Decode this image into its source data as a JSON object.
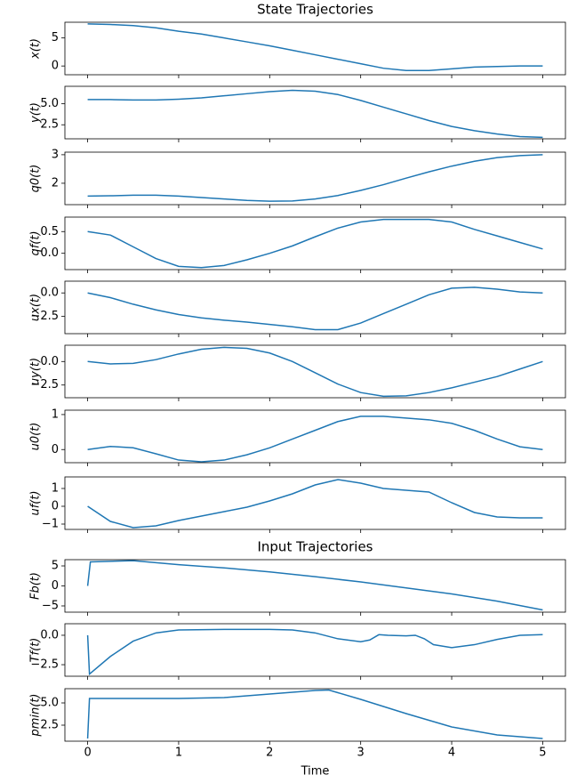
{
  "chart_data": [
    {
      "type": "line",
      "title": "State Trajectories",
      "ylabel": "x(t)",
      "color": "#1f77b4",
      "x": [
        0,
        0.25,
        0.5,
        0.75,
        1,
        1.25,
        1.5,
        1.75,
        2,
        2.25,
        2.5,
        2.75,
        3,
        3.25,
        3.5,
        3.75,
        4,
        4.25,
        4.5,
        4.75,
        5
      ],
      "values": [
        7.5,
        7.4,
        7.2,
        6.8,
        6.2,
        5.7,
        5.0,
        4.3,
        3.6,
        2.8,
        2.0,
        1.2,
        0.4,
        -0.4,
        -0.8,
        -0.8,
        -0.5,
        -0.2,
        -0.1,
        0,
        0
      ],
      "xlim": [
        -0.25,
        5.25
      ],
      "xticks": [
        0,
        1,
        2,
        3,
        4,
        5
      ],
      "ylim": [
        -1.56,
        7.8
      ],
      "yticks": [
        0,
        5
      ]
    },
    {
      "type": "line",
      "ylabel": "y(t)",
      "color": "#1f77b4",
      "x": [
        0,
        0.25,
        0.5,
        0.75,
        1,
        1.25,
        1.5,
        1.75,
        2,
        2.25,
        2.5,
        2.75,
        3,
        3.25,
        3.5,
        3.75,
        4,
        4.25,
        4.5,
        4.75,
        5
      ],
      "values": [
        5.5,
        5.5,
        5.45,
        5.45,
        5.55,
        5.7,
        5.95,
        6.2,
        6.45,
        6.6,
        6.5,
        6.1,
        5.4,
        4.6,
        3.8,
        3.0,
        2.3,
        1.8,
        1.4,
        1.1,
        1.0
      ],
      "xlim": [
        -0.25,
        5.25
      ],
      "xticks": [
        0,
        1,
        2,
        3,
        4,
        5
      ],
      "ylim": [
        0.83,
        7.08
      ],
      "yticks": [
        {
          "value": 5,
          "label": "5.0"
        },
        {
          "value": 2.5,
          "label": "2.5"
        }
      ]
    },
    {
      "type": "line",
      "ylabel": "q0(t)",
      "color": "#1f77b4",
      "x": [
        0,
        0.25,
        0.5,
        0.75,
        1,
        1.25,
        1.5,
        1.75,
        2,
        2.25,
        2.5,
        2.75,
        3,
        3.25,
        3.5,
        3.75,
        4,
        4.25,
        4.5,
        4.75,
        5
      ],
      "values": [
        1.55,
        1.56,
        1.58,
        1.58,
        1.55,
        1.5,
        1.45,
        1.4,
        1.37,
        1.38,
        1.45,
        1.57,
        1.75,
        1.95,
        2.18,
        2.4,
        2.6,
        2.77,
        2.9,
        2.97,
        3.0
      ],
      "xlim": [
        -0.25,
        5.25
      ],
      "xticks": [
        0,
        1,
        2,
        3,
        4,
        5
      ],
      "ylim": [
        1.25,
        3.09
      ],
      "yticks": [
        2,
        3
      ]
    },
    {
      "type": "line",
      "ylabel": "qf(t)",
      "color": "#1f77b4",
      "x": [
        0,
        0.25,
        0.5,
        0.75,
        1,
        1.25,
        1.5,
        1.75,
        2,
        2.25,
        2.5,
        2.75,
        3,
        3.25,
        3.5,
        3.75,
        4,
        4.25,
        4.5,
        4.75,
        5
      ],
      "values": [
        0.5,
        0.42,
        0.15,
        -0.12,
        -0.3,
        -0.33,
        -0.28,
        -0.15,
        0,
        0.17,
        0.38,
        0.58,
        0.72,
        0.78,
        0.78,
        0.78,
        0.72,
        0.55,
        0.4,
        0.25,
        0.1
      ],
      "xlim": [
        -0.25,
        5.25
      ],
      "xticks": [
        0,
        1,
        2,
        3,
        4,
        5
      ],
      "ylim": [
        -0.375,
        0.833
      ],
      "yticks": [
        0.5,
        {
          "value": 0,
          "label": "0.0"
        }
      ]
    },
    {
      "type": "line",
      "ylabel": "ux(t)",
      "color": "#1f77b4",
      "x": [
        0,
        0.25,
        0.5,
        0.75,
        1,
        1.25,
        1.5,
        1.75,
        2,
        2.25,
        2.5,
        2.75,
        3,
        3.25,
        3.5,
        3.75,
        4,
        4.25,
        4.5,
        4.75,
        5
      ],
      "values": [
        0,
        -0.5,
        -1.2,
        -1.8,
        -2.3,
        -2.65,
        -2.9,
        -3.1,
        -3.35,
        -3.6,
        -3.9,
        -3.9,
        -3.2,
        -2.2,
        -1.2,
        -0.2,
        0.5,
        0.6,
        0.4,
        0.1,
        0
      ],
      "xlim": [
        -0.25,
        5.25
      ],
      "xticks": [
        0,
        1,
        2,
        3,
        4,
        5
      ],
      "ylim": [
        -4.33,
        1.25
      ],
      "yticks": [
        {
          "value": 0,
          "label": "0.0"
        },
        {
          "value": -2.5,
          "label": "−2.5"
        }
      ]
    },
    {
      "type": "line",
      "ylabel": "uy(t)",
      "color": "#1f77b4",
      "x": [
        0,
        0.25,
        0.5,
        0.75,
        1,
        1.25,
        1.5,
        1.75,
        2,
        2.25,
        2.5,
        2.75,
        3,
        3.25,
        3.5,
        3.75,
        4,
        4.25,
        4.5,
        4.75,
        5
      ],
      "values": [
        0,
        -0.25,
        -0.2,
        0.2,
        0.8,
        1.3,
        1.5,
        1.4,
        0.9,
        0,
        -1.2,
        -2.4,
        -3.3,
        -3.7,
        -3.65,
        -3.3,
        -2.8,
        -2.2,
        -1.6,
        -0.8,
        0
      ],
      "xlim": [
        -0.25,
        5.25
      ],
      "xticks": [
        0,
        1,
        2,
        3,
        4,
        5
      ],
      "ylim": [
        -3.85,
        1.73
      ],
      "yticks": [
        {
          "value": 0,
          "label": "0.0"
        },
        {
          "value": -2.5,
          "label": "−2.5"
        }
      ]
    },
    {
      "type": "line",
      "ylabel": "u0(t)",
      "color": "#1f77b4",
      "x": [
        0,
        0.25,
        0.5,
        0.75,
        1,
        1.25,
        1.5,
        1.75,
        2,
        2.25,
        2.5,
        2.75,
        3,
        3.25,
        3.5,
        3.75,
        4,
        4.25,
        4.5,
        4.75,
        5
      ],
      "values": [
        0,
        0.09,
        0.05,
        -0.12,
        -0.3,
        -0.35,
        -0.3,
        -0.15,
        0.05,
        0.3,
        0.55,
        0.8,
        0.95,
        0.95,
        0.9,
        0.85,
        0.75,
        0.55,
        0.3,
        0.08,
        0
      ],
      "xlim": [
        -0.25,
        5.25
      ],
      "xticks": [
        0,
        1,
        2,
        3,
        4,
        5
      ],
      "ylim": [
        -0.375,
        1.125
      ],
      "yticks": [
        1,
        0
      ]
    },
    {
      "type": "line",
      "ylabel": "uf(t)",
      "color": "#1f77b4",
      "x": [
        0,
        0.25,
        0.5,
        0.75,
        1,
        1.25,
        1.5,
        1.75,
        2,
        2.25,
        2.5,
        2.75,
        3,
        3.25,
        3.5,
        3.75,
        4,
        4.25,
        4.5,
        4.75,
        5
      ],
      "values": [
        0,
        -0.85,
        -1.2,
        -1.1,
        -0.8,
        -0.55,
        -0.3,
        -0.05,
        0.3,
        0.7,
        1.2,
        1.5,
        1.3,
        1.0,
        0.9,
        0.8,
        0.2,
        -0.35,
        -0.6,
        -0.65,
        -0.65
      ],
      "xlim": [
        -0.25,
        5.25
      ],
      "xticks": [
        0,
        1,
        2,
        3,
        4,
        5
      ],
      "ylim": [
        -1.3,
        1.65
      ],
      "yticks": [
        1,
        0,
        {
          "value": -1,
          "label": "−1"
        }
      ]
    },
    {
      "type": "line",
      "title": "Input Trajectories",
      "ylabel": "Fb(t)",
      "color": "#1f77b4",
      "x": [
        0,
        0.03,
        0.5,
        1,
        1.5,
        2,
        2.5,
        3,
        3.5,
        4,
        4.5,
        5
      ],
      "values": [
        0,
        6,
        6.3,
        5.3,
        4.5,
        3.5,
        2.3,
        1,
        -0.5,
        -2,
        -3.8,
        -6
      ],
      "xlim": [
        -0.25,
        5.25
      ],
      "xticks": [
        0,
        1,
        2,
        3,
        4,
        5
      ],
      "ylim": [
        -6.56,
        6.56
      ],
      "yticks": [
        5,
        0,
        {
          "value": -5,
          "label": "−5"
        }
      ]
    },
    {
      "type": "line",
      "ylabel": "Tf(t)",
      "color": "#1f77b4",
      "x": [
        0,
        0.02,
        0.25,
        0.5,
        0.75,
        1,
        1.5,
        2,
        2.25,
        2.5,
        2.75,
        3,
        3.1,
        3.2,
        3.3,
        3.5,
        3.6,
        3.7,
        3.8,
        4,
        4.25,
        4.5,
        4.75,
        5
      ],
      "values": [
        0,
        -3.3,
        -1.8,
        -0.5,
        0.2,
        0.45,
        0.5,
        0.5,
        0.45,
        0.2,
        -0.3,
        -0.55,
        -0.4,
        0.05,
        0,
        -0.05,
        0,
        -0.3,
        -0.8,
        -1.05,
        -0.8,
        -0.35,
        0,
        0.05
      ],
      "xlim": [
        -0.25,
        5.25
      ],
      "xticks": [
        0,
        1,
        2,
        3,
        4,
        5
      ],
      "ylim": [
        -3.48,
        0.98
      ],
      "yticks": [
        {
          "value": 0,
          "label": "0.0"
        },
        {
          "value": -2.5,
          "label": "−2.5"
        }
      ]
    },
    {
      "type": "line",
      "ylabel": "pmin(t)",
      "xlabel": "Time",
      "color": "#1f77b4",
      "x": [
        0,
        0.02,
        0.5,
        1,
        1.5,
        2,
        2.5,
        2.65,
        3,
        3.5,
        4,
        4.5,
        5
      ],
      "values": [
        1.0,
        5.5,
        5.5,
        5.5,
        5.6,
        6.0,
        6.4,
        6.45,
        5.4,
        3.8,
        2.3,
        1.4,
        1.0
      ],
      "xlim": [
        -0.25,
        5.25
      ],
      "xticks": [
        0,
        1,
        2,
        3,
        4,
        5
      ],
      "ylim": [
        0.7,
        6.6
      ],
      "yticks": [
        {
          "value": 5,
          "label": "5.0"
        },
        {
          "value": 2.5,
          "label": "2.5"
        }
      ]
    }
  ]
}
